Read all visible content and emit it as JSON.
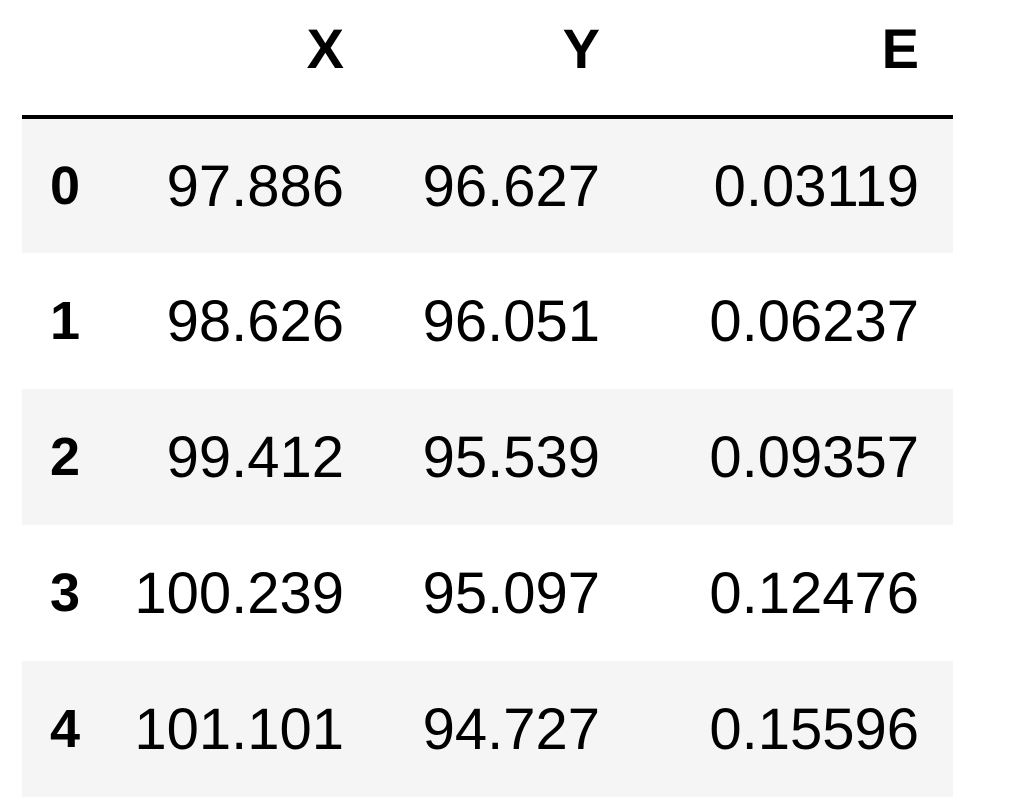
{
  "table": {
    "index_header": "",
    "columns": [
      "X",
      "Y",
      "E"
    ],
    "rows": [
      {
        "index": "0",
        "cells": [
          "97.886",
          "96.627",
          "0.03119"
        ]
      },
      {
        "index": "1",
        "cells": [
          "98.626",
          "96.051",
          "0.06237"
        ]
      },
      {
        "index": "2",
        "cells": [
          "99.412",
          "95.539",
          "0.09357"
        ]
      },
      {
        "index": "3",
        "cells": [
          "100.239",
          "95.097",
          "0.12476"
        ]
      },
      {
        "index": "4",
        "cells": [
          "101.101",
          "94.727",
          "0.15596"
        ]
      }
    ]
  }
}
